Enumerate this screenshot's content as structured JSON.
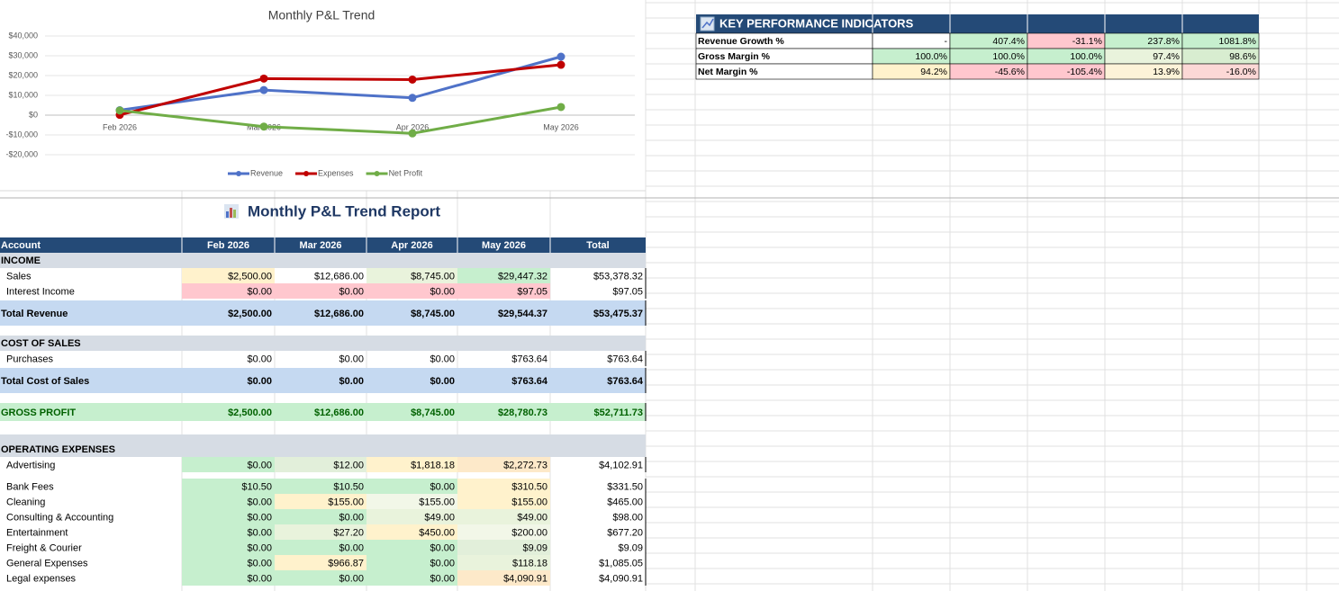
{
  "chart_data": {
    "type": "line",
    "title": "Monthly P&L Trend",
    "categories": [
      "Feb 2026",
      "Mar 2026",
      "Apr 2026",
      "May 2026"
    ],
    "series": [
      {
        "name": "Revenue",
        "color": "#4f72c8",
        "values": [
          2500,
          12686,
          8745,
          29544.37
        ]
      },
      {
        "name": "Expenses",
        "color": "#c00000",
        "values": [
          145,
          18471,
          17963,
          25437
        ]
      },
      {
        "name": "Net Profit",
        "color": "#70ad47",
        "values": [
          2355,
          -5785,
          -9218,
          4107
        ]
      }
    ],
    "ylim": [
      -20000,
      40000
    ],
    "yticks": [
      {
        "value": -20000,
        "label": "-$20,000"
      },
      {
        "value": -10000,
        "label": "-$10,000"
      },
      {
        "value": 0,
        "label": "$0"
      },
      {
        "value": 10000,
        "label": "$10,000"
      },
      {
        "value": 20000,
        "label": "$20,000"
      },
      {
        "value": 30000,
        "label": "$30,000"
      },
      {
        "value": 40000,
        "label": "$40,000"
      }
    ],
    "grid": true,
    "legend": "bottom"
  },
  "kpi": {
    "title": "KEY PERFORMANCE INDICATORS",
    "rows": [
      {
        "label": "Revenue Growth %",
        "values": [
          "-",
          "407.4%",
          "-31.1%",
          "237.8%",
          "1081.8%"
        ]
      },
      {
        "label": "Gross Margin %",
        "values": [
          "100.0%",
          "100.0%",
          "100.0%",
          "97.4%",
          "98.6%"
        ]
      },
      {
        "label": "Net Margin %",
        "values": [
          "94.2%",
          "-45.6%",
          "-105.4%",
          "13.9%",
          "-16.0%"
        ]
      }
    ]
  },
  "report": {
    "title": "Monthly P&L Trend Report",
    "columns": [
      "Account",
      "Feb 2026",
      "Mar 2026",
      "Apr 2026",
      "May 2026",
      "Total"
    ],
    "rows": [
      {
        "label": "INCOME"
      },
      {
        "label": "Sales",
        "values": [
          "$2,500.00",
          "$12,686.00",
          "$8,745.00",
          "$29,447.32",
          "$53,378.32"
        ]
      },
      {
        "label": "Interest Income",
        "values": [
          "$0.00",
          "$0.00",
          "$0.00",
          "$97.05",
          "$97.05"
        ]
      },
      {
        "label": "Total Revenue",
        "values": [
          "$2,500.00",
          "$12,686.00",
          "$8,745.00",
          "$29,544.37",
          "$53,475.37"
        ]
      },
      {
        "label": "COST OF SALES"
      },
      {
        "label": "Purchases",
        "values": [
          "$0.00",
          "$0.00",
          "$0.00",
          "$763.64",
          "$763.64"
        ]
      },
      {
        "label": "Total Cost of Sales",
        "values": [
          "$0.00",
          "$0.00",
          "$0.00",
          "$763.64",
          "$763.64"
        ]
      },
      {
        "label": "GROSS PROFIT",
        "values": [
          "$2,500.00",
          "$12,686.00",
          "$8,745.00",
          "$28,780.73",
          "$52,711.73"
        ]
      },
      {
        "label": "OPERATING EXPENSES"
      },
      {
        "label": "Advertising",
        "values": [
          "$0.00",
          "$12.00",
          "$1,818.18",
          "$2,272.73",
          "$4,102.91"
        ]
      },
      {
        "label": "Bank Fees",
        "values": [
          "$10.50",
          "$10.50",
          "$0.00",
          "$310.50",
          "$331.50"
        ]
      },
      {
        "label": "Cleaning",
        "values": [
          "$0.00",
          "$155.00",
          "$155.00",
          "$155.00",
          "$465.00"
        ]
      },
      {
        "label": "Consulting & Accounting",
        "values": [
          "$0.00",
          "$0.00",
          "$49.00",
          "$49.00",
          "$98.00"
        ]
      },
      {
        "label": "Entertainment",
        "values": [
          "$0.00",
          "$27.20",
          "$450.00",
          "$200.00",
          "$677.20"
        ]
      },
      {
        "label": "Freight & Courier",
        "values": [
          "$0.00",
          "$0.00",
          "$0.00",
          "$9.09",
          "$9.09"
        ]
      },
      {
        "label": "General Expenses",
        "values": [
          "$0.00",
          "$966.87",
          "$0.00",
          "$118.18",
          "$1,085.05"
        ]
      },
      {
        "label": "Legal expenses",
        "values": [
          "$0.00",
          "$0.00",
          "$0.00",
          "$4,090.91",
          "$4,090.91"
        ]
      }
    ]
  }
}
